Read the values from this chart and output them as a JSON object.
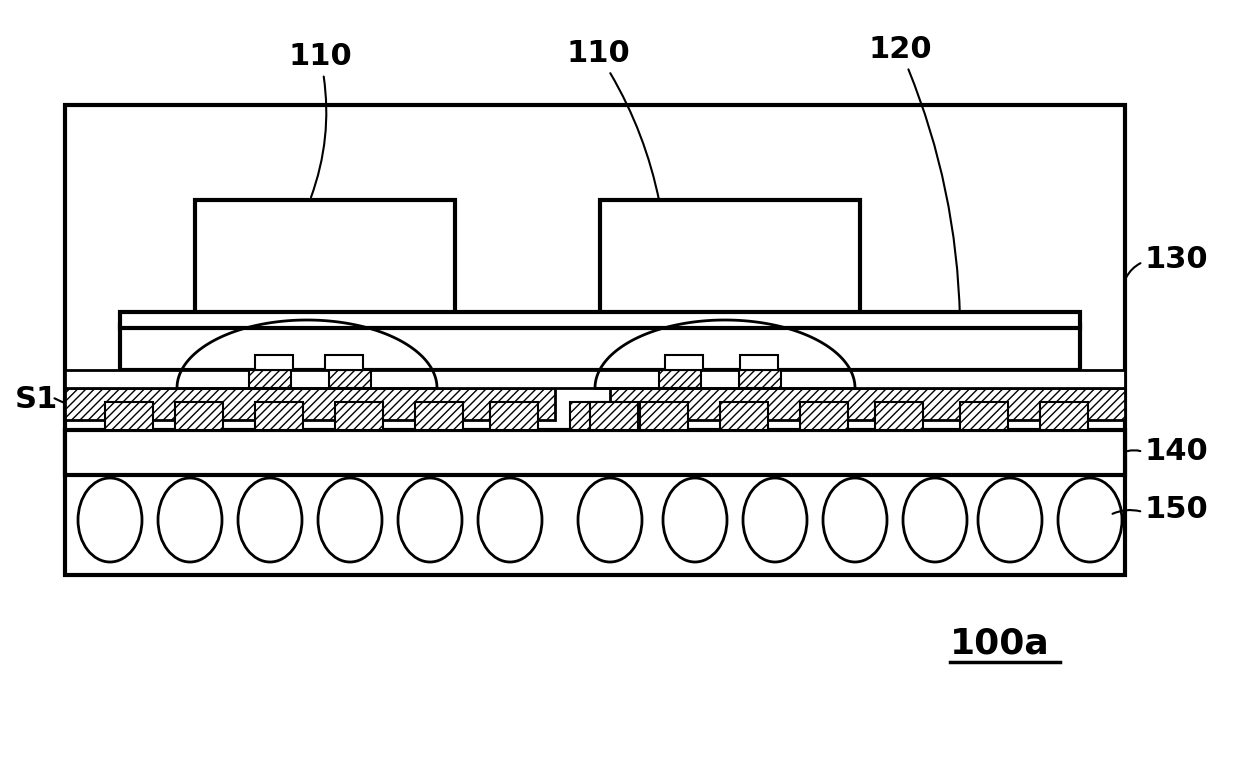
{
  "bg_color": "#ffffff",
  "line_color": "#000000",
  "fig_width": 12.4,
  "fig_height": 7.75,
  "label_110_1": "110",
  "label_110_2": "110",
  "label_120": "120",
  "label_130": "130",
  "label_140": "140",
  "label_150": "150",
  "label_S1": "S1",
  "label_100a": "100a",
  "ann_fontsize": 22,
  "lw_main": 2.0,
  "lw_thick": 3.0
}
